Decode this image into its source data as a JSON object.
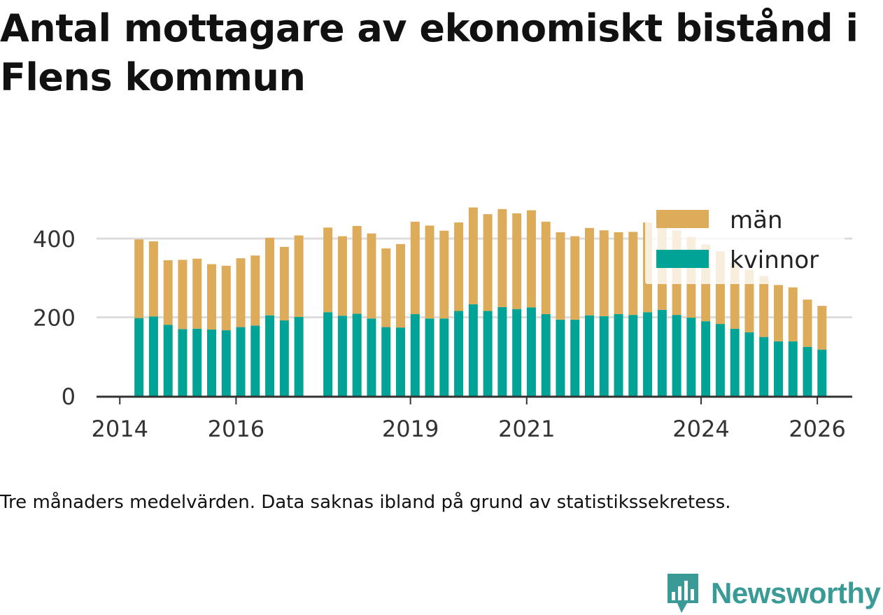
{
  "title": "Antal mottagare av ekonomiskt bistånd i Flens kommun",
  "footnote": "Tre månaders medelvärden. Data saknas ibland på grund av statistikssekretess.",
  "brand": "Newsworthy",
  "colors": {
    "kvinnor": "#00a396",
    "man": "#ddac5b",
    "grid": "#dddddd",
    "axis": "#333333"
  },
  "chart_data": {
    "type": "bar",
    "stacked": true,
    "title": "Antal mottagare av ekonomiskt bistånd i Flens kommun",
    "xlabel": "",
    "ylabel": "",
    "ylim": [
      0,
      500
    ],
    "yticks": [
      0,
      200,
      400
    ],
    "xlim": [
      2013.6,
      2026.6
    ],
    "xticks": [
      {
        "value": 2014,
        "label": "2014"
      },
      {
        "value": 2016,
        "label": "2016"
      },
      {
        "value": 2019,
        "label": "2019"
      },
      {
        "value": 2021,
        "label": "2021"
      },
      {
        "value": 2024,
        "label": "2024"
      },
      {
        "value": 2026,
        "label": "2026"
      }
    ],
    "legend": {
      "position": "top-right",
      "entries": [
        "män",
        "kvinnor"
      ]
    },
    "x": [
      2014.33,
      2014.58,
      2014.83,
      2015.08,
      2015.33,
      2015.58,
      2015.83,
      2016.08,
      2016.33,
      2016.58,
      2016.83,
      2017.08,
      2017.58,
      2017.83,
      2018.08,
      2018.33,
      2018.58,
      2018.83,
      2019.08,
      2019.33,
      2019.58,
      2019.83,
      2020.08,
      2020.33,
      2020.58,
      2020.83,
      2021.08,
      2021.33,
      2021.58,
      2021.83,
      2022.08,
      2022.33,
      2022.58,
      2022.83,
      2023.08,
      2023.33,
      2023.58,
      2023.83,
      2024.08,
      2024.33,
      2024.58,
      2024.83,
      2025.08,
      2025.33,
      2025.58,
      2025.83,
      2026.08
    ],
    "series": [
      {
        "name": "kvinnor",
        "values": [
          198,
          202,
          181,
          170,
          171,
          169,
          167,
          175,
          179,
          205,
          192,
          201,
          213,
          204,
          209,
          197,
          175,
          174,
          208,
          197,
          197,
          216,
          233,
          216,
          226,
          221,
          225,
          208,
          194,
          194,
          205,
          203,
          208,
          206,
          213,
          219,
          206,
          199,
          190,
          183,
          171,
          162,
          150,
          139,
          139,
          125,
          118
        ]
      },
      {
        "name": "män",
        "values": [
          200,
          191,
          164,
          176,
          178,
          166,
          164,
          175,
          178,
          197,
          187,
          207,
          215,
          202,
          223,
          216,
          200,
          212,
          235,
          236,
          223,
          225,
          246,
          246,
          249,
          243,
          247,
          235,
          222,
          212,
          222,
          218,
          208,
          211,
          228,
          227,
          215,
          205,
          195,
          185,
          168,
          159,
          155,
          143,
          137,
          120,
          111
        ]
      }
    ]
  }
}
